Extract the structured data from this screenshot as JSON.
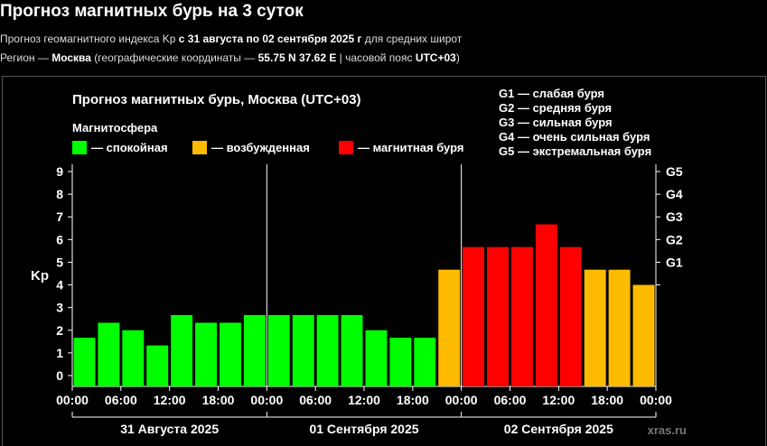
{
  "header": {
    "title": "Прогноз магнитных бурь на 3 суток",
    "line1_prefix": "Прогноз геомагнитного индекса Kp ",
    "line1_bold": "с 31 августа по 02 сентября 2025 г",
    "line1_suffix": " для средних широт",
    "line2_prefix": "Регион — ",
    "line2_city": "Москва",
    "line2_mid": " (географические координаты — ",
    "line2_coords": "55.75 N 37.62 E",
    "line2_tz_prefix": " | часовой пояс ",
    "line2_tz": "UTC+03",
    "line2_end": ")"
  },
  "legend": {
    "magnetosphere_title": "Магнитосфера",
    "items": [
      {
        "label": "— спокойная",
        "color": "#00ff00"
      },
      {
        "label": "— возбужденная",
        "color": "#ffbb00"
      },
      {
        "label": "— магнитная буря",
        "color": "#ff0000"
      }
    ],
    "g_levels": [
      "G1 — слабая буря",
      "G2 — средняя буря",
      "G3 — сильная буря",
      "G4 — очень сильная буря",
      "G5 — экстремальная буря"
    ]
  },
  "watermark": "xras.ru",
  "chart_data": {
    "type": "bar",
    "title": "Прогноз магнитных бурь, Москва (UTC+03)",
    "ylabel": "Kp",
    "ylim": [
      0,
      9
    ],
    "yticks": [
      0,
      1,
      2,
      3,
      4,
      5,
      6,
      7,
      8,
      9
    ],
    "right_ticks": [
      {
        "value": 5,
        "label": "G1"
      },
      {
        "value": 6,
        "label": "G2"
      },
      {
        "value": 7,
        "label": "G3"
      },
      {
        "value": 8,
        "label": "G4"
      },
      {
        "value": 9,
        "label": "G5"
      }
    ],
    "x_tick_labels": [
      "00:00",
      "06:00",
      "12:00",
      "18:00",
      "00:00",
      "06:00",
      "12:00",
      "18:00",
      "00:00",
      "06:00",
      "12:00",
      "18:00",
      "00:00"
    ],
    "days": [
      "31 Августа 2025",
      "01 Сентября 2025",
      "02 Сентября 2025"
    ],
    "bars_per_day": 8,
    "values": [
      1.67,
      2.33,
      2.0,
      1.33,
      2.67,
      2.33,
      2.33,
      2.67,
      2.67,
      2.67,
      2.67,
      2.67,
      2.0,
      1.67,
      1.67,
      4.67,
      5.67,
      5.67,
      5.67,
      6.67,
      5.67,
      4.67,
      4.67,
      4.0
    ],
    "colors": {
      "quiet": "#00ff00",
      "active": "#ffbb00",
      "storm": "#ff0000"
    }
  }
}
